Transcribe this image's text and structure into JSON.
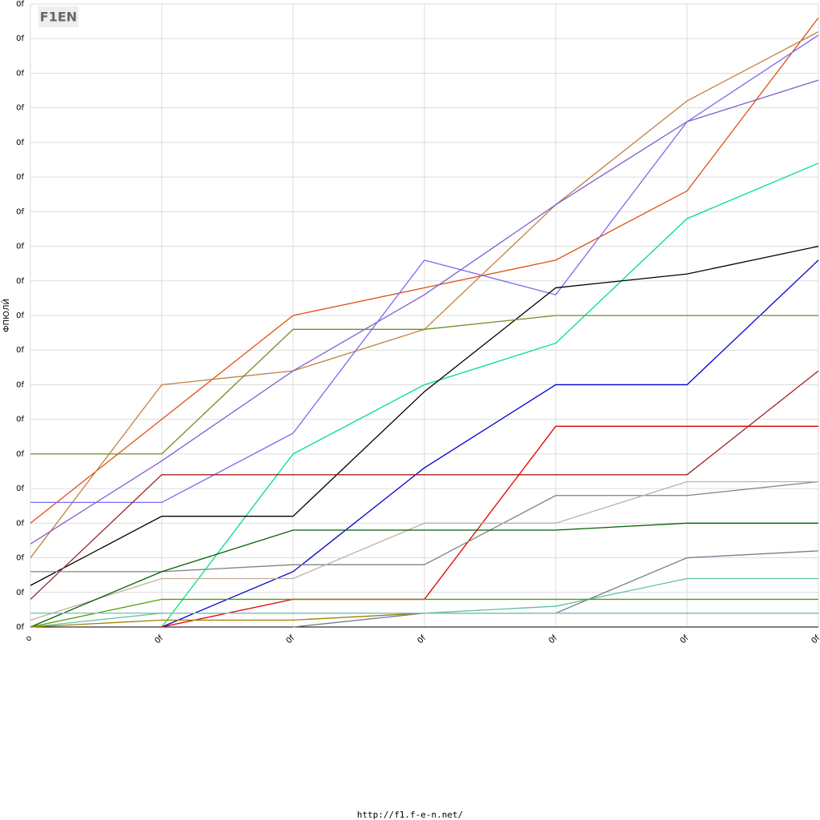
{
  "logo": "F1EN",
  "footer": "http://f1.f-e-n.net/",
  "chart_data": {
    "type": "line",
    "y_label": "ФПЮЛЙ",
    "categories": [
      "o",
      "0f",
      "0f",
      "0f",
      "0f",
      "0f",
      "0f"
    ],
    "ylim": [
      0,
      18
    ],
    "yticks": [
      {
        "value": 0,
        "label": "0f"
      },
      {
        "value": 1,
        "label": "0f"
      },
      {
        "value": 2,
        "label": "0f"
      },
      {
        "value": 3,
        "label": "0f"
      },
      {
        "value": 4,
        "label": "0f"
      },
      {
        "value": 5,
        "label": "0f"
      },
      {
        "value": 6,
        "label": "0f"
      },
      {
        "value": 7,
        "label": "0f"
      },
      {
        "value": 8,
        "label": "0f"
      },
      {
        "value": 9,
        "label": "0f"
      },
      {
        "value": 10,
        "label": "0f"
      },
      {
        "value": 11,
        "label": "0f"
      },
      {
        "value": 12,
        "label": "0f"
      },
      {
        "value": 13,
        "label": "0f"
      },
      {
        "value": 14,
        "label": "0f"
      },
      {
        "value": 15,
        "label": "0f"
      },
      {
        "value": 16,
        "label": "0f"
      },
      {
        "value": 17,
        "label": "0f"
      },
      {
        "value": 18,
        "label": "0f"
      }
    ],
    "grid": true,
    "series": [
      {
        "color": "#e05010",
        "values": [
          3,
          6,
          9,
          9.8,
          10.6,
          12.6,
          17.6
        ]
      },
      {
        "color": "#c08040",
        "values": [
          2,
          7,
          7.4,
          8.6,
          12.2,
          15.2,
          17.2
        ]
      },
      {
        "color": "#8060d0",
        "values": [
          2.4,
          4.8,
          7.4,
          9.6,
          12.2,
          14.6,
          15.8
        ]
      },
      {
        "color": "#7b68ee",
        "values": [
          3.6,
          3.6,
          5.6,
          10.6,
          9.6,
          14.6,
          17.1
        ]
      },
      {
        "color": "#00e080",
        "values": [
          null,
          0,
          5,
          7,
          8.2,
          11.8,
          13.4
        ]
      },
      {
        "color": "#000000",
        "values": [
          1.2,
          3.2,
          3.2,
          6.8,
          9.8,
          10.2,
          11
        ]
      },
      {
        "color": "#0000d0",
        "values": [
          null,
          0,
          1.6,
          4.6,
          7,
          7,
          10.6
        ]
      },
      {
        "color": "#6b8e23",
        "values": [
          5,
          5,
          8.6,
          8.6,
          9,
          9,
          9
        ]
      },
      {
        "color": "#a02020",
        "values": [
          0.8,
          4.4,
          4.4,
          4.4,
          4.4,
          4.4,
          7.4
        ]
      },
      {
        "color": "#e00000",
        "values": [
          null,
          0,
          0.8,
          0.8,
          5.8,
          5.8,
          5.8
        ]
      },
      {
        "color": "#808080",
        "values": [
          1.6,
          1.6,
          1.8,
          1.8,
          3.8,
          3.8,
          4.2
        ]
      },
      {
        "color": "#c0b0a0",
        "values": [
          0.2,
          1.4,
          1.4,
          3,
          3,
          4.2,
          4.2
        ]
      },
      {
        "color": "#006000",
        "values": [
          0,
          1.6,
          2.8,
          2.8,
          2.8,
          3,
          3
        ]
      },
      {
        "color": "#708090",
        "values": [
          null,
          null,
          0,
          0.4,
          0.4,
          2,
          2.2
        ]
      },
      {
        "color": "#60c0a0",
        "values": [
          0,
          0.4,
          0.4,
          0.4,
          0.6,
          1.4,
          1.4
        ]
      },
      {
        "color": "#50a000",
        "values": [
          0,
          0.8,
          0.8,
          0.8,
          0.8,
          0.8,
          0.8
        ]
      },
      {
        "color": "#a08000",
        "values": [
          0,
          0.2,
          0.2,
          0.4,
          0.4,
          0.4,
          0.4
        ]
      },
      {
        "color": "#80c0c0",
        "values": [
          0.4,
          0.4,
          0.4,
          0.4,
          0.4,
          0.4,
          0.4
        ]
      }
    ]
  }
}
